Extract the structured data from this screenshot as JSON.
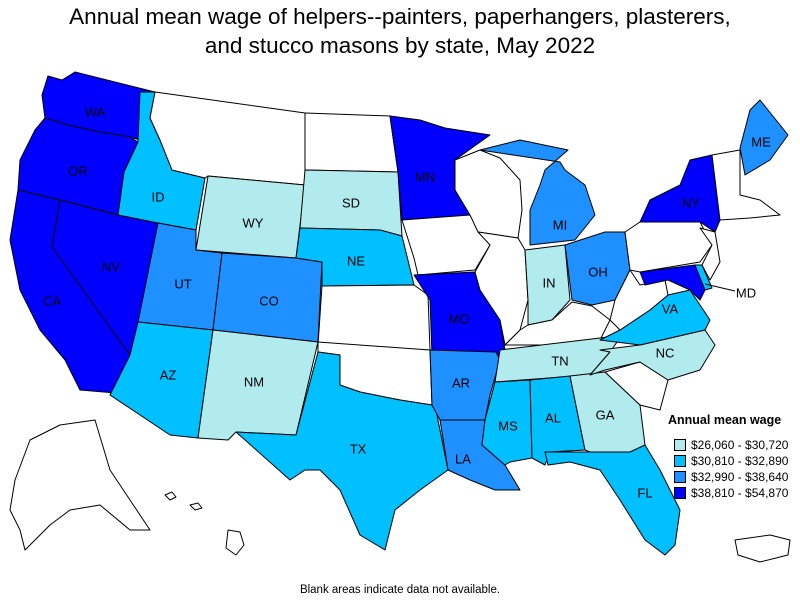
{
  "title_line1": "Annual mean wage of helpers--painters, paperhangers, plasterers,",
  "title_line2": "and stucco masons by state, May 2022",
  "legend": {
    "title": "Annual mean wage",
    "items": [
      {
        "label": "$26,060 - $30,720",
        "color": "#b2ebee"
      },
      {
        "label": "$30,810 - $32,890",
        "color": "#00c0ff"
      },
      {
        "label": "$32,990 - $38,640",
        "color": "#1e90ff"
      },
      {
        "label": "$38,810 - $54,870",
        "color": "#0000ff"
      }
    ]
  },
  "no_data_color": "#ffffff",
  "states": {
    "WA": {
      "label": "WA",
      "class": 4
    },
    "OR": {
      "label": "OR",
      "class": 4
    },
    "CA": {
      "label": "CA",
      "class": 4
    },
    "NV": {
      "label": "NV",
      "class": 4
    },
    "ID": {
      "label": "ID",
      "class": 2
    },
    "MT": {
      "label": "",
      "class": 0
    },
    "WY": {
      "label": "WY",
      "class": 1
    },
    "UT": {
      "label": "UT",
      "class": 3
    },
    "AZ": {
      "label": "AZ",
      "class": 2
    },
    "CO": {
      "label": "CO",
      "class": 3
    },
    "NM": {
      "label": "NM",
      "class": 1
    },
    "ND": {
      "label": "",
      "class": 0
    },
    "SD": {
      "label": "SD",
      "class": 1
    },
    "NE": {
      "label": "NE",
      "class": 2
    },
    "KS": {
      "label": "",
      "class": 0
    },
    "OK": {
      "label": "",
      "class": 0
    },
    "TX": {
      "label": "TX",
      "class": 2
    },
    "MN": {
      "label": "MN",
      "class": 4
    },
    "IA": {
      "label": "",
      "class": 0
    },
    "MO": {
      "label": "MO",
      "class": 4
    },
    "AR": {
      "label": "AR",
      "class": 3
    },
    "LA": {
      "label": "LA",
      "class": 3
    },
    "WI": {
      "label": "",
      "class": 0
    },
    "IL": {
      "label": "",
      "class": 0
    },
    "MI": {
      "label": "MI",
      "class": 3
    },
    "IN": {
      "label": "IN",
      "class": 1
    },
    "OH": {
      "label": "OH",
      "class": 3
    },
    "KY": {
      "label": "",
      "class": 0
    },
    "TN": {
      "label": "TN",
      "class": 1
    },
    "MS": {
      "label": "MS",
      "class": 2
    },
    "AL": {
      "label": "AL",
      "class": 2
    },
    "GA": {
      "label": "GA",
      "class": 1
    },
    "FL": {
      "label": "FL",
      "class": 2
    },
    "SC": {
      "label": "",
      "class": 0
    },
    "NC": {
      "label": "NC",
      "class": 1
    },
    "VA": {
      "label": "VA",
      "class": 2
    },
    "WV": {
      "label": "",
      "class": 0
    },
    "PA": {
      "label": "",
      "class": 0
    },
    "NY": {
      "label": "NY",
      "class": 4
    },
    "ME": {
      "label": "ME",
      "class": 3
    },
    "NE_states": {
      "label": "",
      "class": 0
    },
    "MD": {
      "label": "MD",
      "class": 4
    },
    "NJ": {
      "label": "",
      "class": 0
    },
    "DE": {
      "label": "",
      "class": 2
    },
    "AK": {
      "label": "",
      "class": 0
    },
    "HI": {
      "label": "",
      "class": 0
    },
    "PR": {
      "label": "",
      "class": 0
    }
  },
  "footnote": "Blank areas indicate data not available."
}
